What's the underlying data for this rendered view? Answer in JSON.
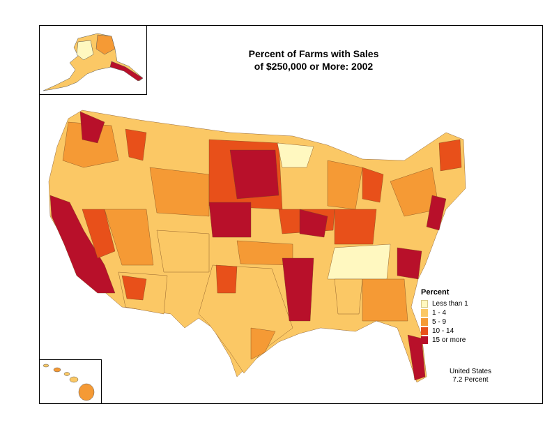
{
  "title": {
    "line1": "Percent of Farms with Sales",
    "line2": "of $250,000 or More:  2002"
  },
  "legend": {
    "title": "Percent",
    "items": [
      {
        "label": "Less than 1",
        "color": "#fff8c0"
      },
      {
        "label": "1 - 4",
        "color": "#fbc865"
      },
      {
        "label": "5 - 9",
        "color": "#f59a35"
      },
      {
        "label": "10 - 14",
        "color": "#e8501a"
      },
      {
        "label": "15 or more",
        "color": "#b8102a"
      }
    ]
  },
  "summary": {
    "line1": "United States",
    "line2": "7.2 Percent"
  }
}
